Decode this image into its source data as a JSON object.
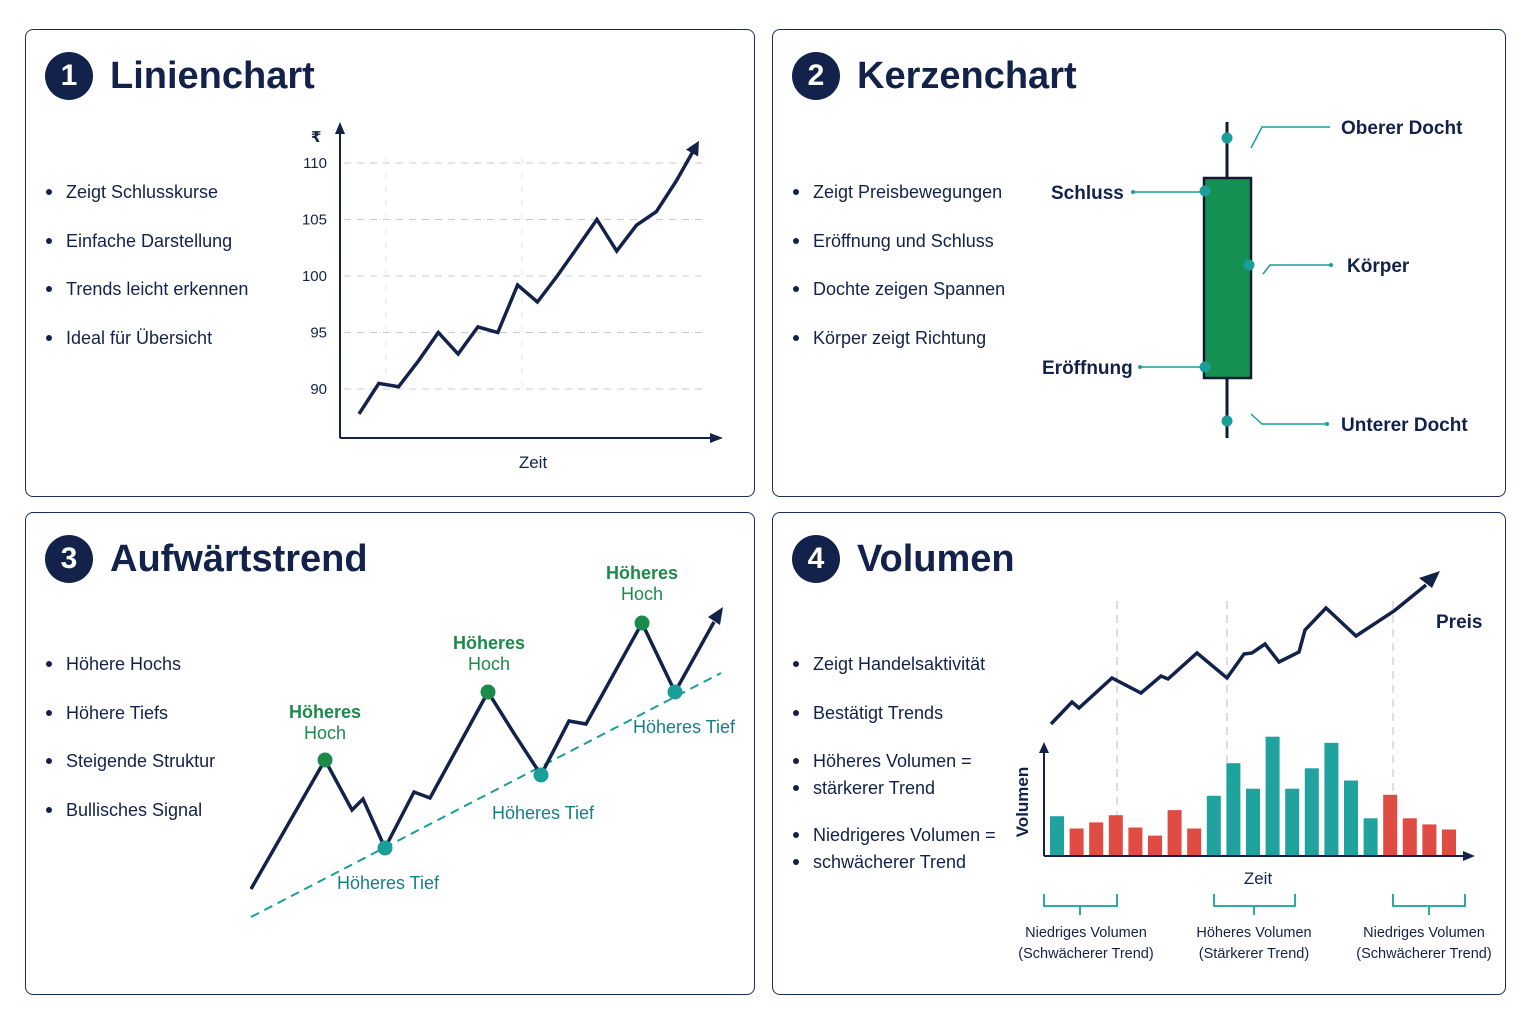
{
  "colors": {
    "navy": "#13224a",
    "green": "#1b8a4a",
    "teal": "#1a9e9a",
    "teal_bar": "#20a39e",
    "red": "#e04b43",
    "candle": "#149152",
    "grid": "#c9ccd4"
  },
  "panels": [
    {
      "number": "1",
      "title": "Linienchart",
      "bullets": [
        "Zeigt Schlusskurse",
        "Einfache Darstellung",
        "Trends leicht erkennen",
        "Ideal für Übersicht"
      ]
    },
    {
      "number": "2",
      "title": "Kerzenchart",
      "bullets": [
        "Zeigt Preisbewegungen",
        "Eröffnung und Schluss",
        "Dochte zeigen Spannen",
        "Körper zeigt Richtung"
      ]
    },
    {
      "number": "3",
      "title": "Aufwärtstrend",
      "bullets": [
        "Höhere Hochs",
        "Höhere Tiefs",
        "Steigende Struktur",
        "Bullisches Signal"
      ]
    },
    {
      "number": "4",
      "title": "Volumen",
      "bullets": [
        "Zeigt Handelsaktivität",
        "Bestätigt Trends",
        "Höheres Volumen =",
        "stärkerer Trend",
        "Niedrigeres Volumen =",
        "schwächerer Trend"
      ]
    }
  ],
  "line_chart": {
    "type": "line",
    "xlabel": "Zeit",
    "ylabel_glyph": "₹",
    "yticks": [
      90,
      95,
      100,
      105,
      110
    ],
    "ylim": [
      85,
      112.5
    ],
    "values": [
      87.8,
      90.5,
      90.2,
      92.5,
      95.0,
      93.1,
      95.5,
      95.0,
      99.2,
      97.7,
      100.0,
      102.5,
      105.0,
      102.2,
      104.5,
      105.7,
      108.4,
      111.5
    ]
  },
  "candle": {
    "labels": {
      "upper_wick": "Oberer Docht",
      "close": "Schluss",
      "body": "Körper",
      "open": "Eröffnung",
      "lower_wick": "Unterer Docht"
    }
  },
  "uptrend": {
    "high_label_line1": "Höheres",
    "high_label_line2": "Hoch",
    "low_label": "Höheres Tief"
  },
  "volume": {
    "price_label": "Preis",
    "ylabel": "Volumen",
    "xlabel": "Zeit",
    "groups": [
      {
        "line1": "Niedriges Volumen",
        "line2": "(Schwächerer Trend)"
      },
      {
        "line1": "Höheres Volumen",
        "line2": "(Stärkerer Trend)"
      },
      {
        "line1": "Niedriges Volumen",
        "line2": "(Schwächerer Trend)"
      }
    ],
    "bars": [
      {
        "v": 3.8,
        "c": "teal"
      },
      {
        "v": 2.6,
        "c": "red"
      },
      {
        "v": 3.2,
        "c": "red"
      },
      {
        "v": 3.9,
        "c": "red"
      },
      {
        "v": 2.7,
        "c": "red"
      },
      {
        "v": 1.9,
        "c": "red"
      },
      {
        "v": 4.4,
        "c": "red"
      },
      {
        "v": 2.6,
        "c": "red"
      },
      {
        "v": 5.8,
        "c": "teal"
      },
      {
        "v": 9.0,
        "c": "teal"
      },
      {
        "v": 6.5,
        "c": "teal"
      },
      {
        "v": 11.6,
        "c": "teal"
      },
      {
        "v": 6.5,
        "c": "teal"
      },
      {
        "v": 8.5,
        "c": "teal"
      },
      {
        "v": 11.0,
        "c": "teal"
      },
      {
        "v": 7.3,
        "c": "teal"
      },
      {
        "v": 3.6,
        "c": "teal"
      },
      {
        "v": 5.9,
        "c": "red"
      },
      {
        "v": 3.6,
        "c": "red"
      },
      {
        "v": 3.0,
        "c": "red"
      },
      {
        "v": 2.5,
        "c": "red"
      }
    ]
  }
}
